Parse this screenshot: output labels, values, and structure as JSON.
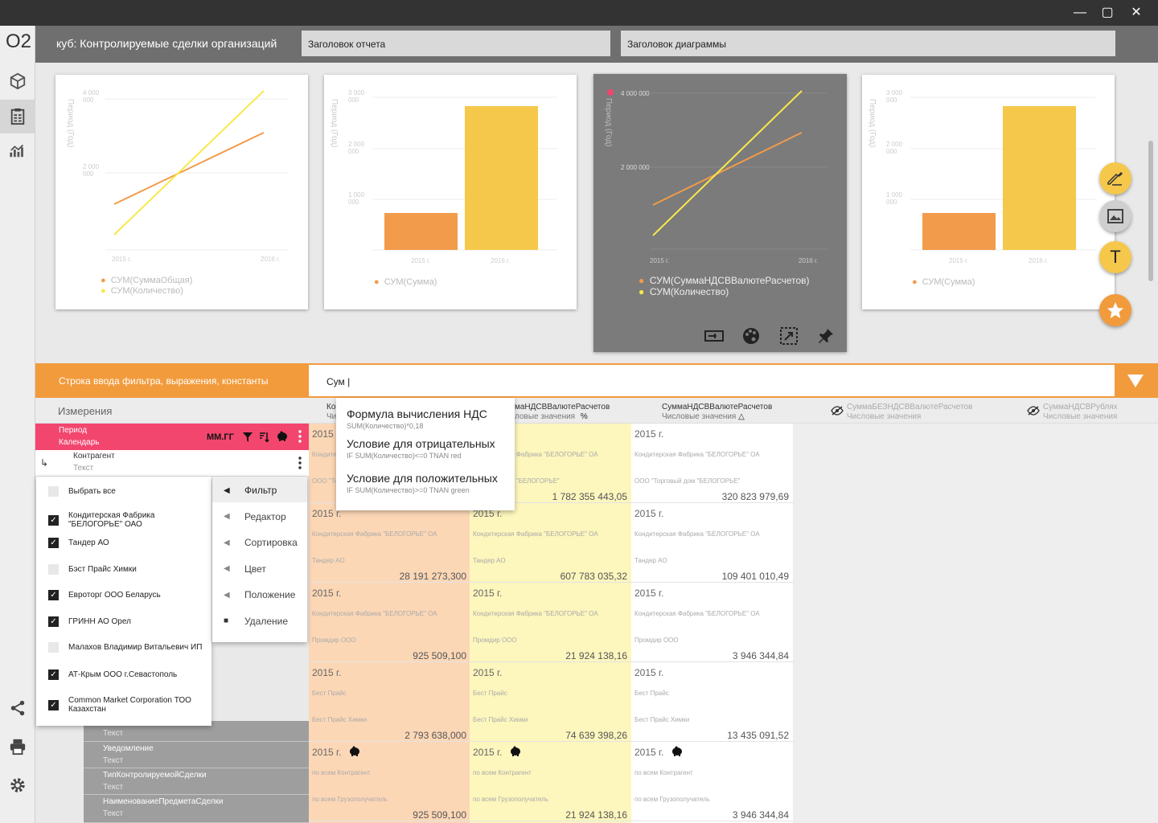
{
  "window": {
    "minimize": "—",
    "maximize": "▢",
    "close": "✕"
  },
  "sidebar": {
    "logo": "O2"
  },
  "topbar": {
    "cube_label": "куб: Контролируемые сделки организаций",
    "report_title_placeholder": "Заголовок отчета",
    "chart_title_placeholder": "Заголовок диаграммы"
  },
  "cards": [
    {
      "ylabel": "Период (Год)",
      "ticks_y": [
        "4 000 000",
        "2 000 000"
      ],
      "ticks_x": [
        "2015 г.",
        "2016 г."
      ],
      "legend": [
        "СУМ(СуммаОбщая)",
        "СУМ(Количество)"
      ]
    },
    {
      "ylabel": "Период (Год)",
      "ticks_y": [
        "3 000 000",
        "2 000 000",
        "1 000 000"
      ],
      "ticks_x": [
        "2015 г.",
        "2016 г."
      ],
      "legend": [
        "СУМ(Сумма)"
      ]
    },
    {
      "ylabel": "Период (Год)",
      "ticks_y": [
        "4 000 000",
        "2 000 000"
      ],
      "ticks_x": [
        "2015 г.",
        "2016 г."
      ],
      "legend": [
        "СУМ(СуммаНДСВВалютеРасчетов)",
        "СУМ(Количество)"
      ]
    },
    {
      "ylabel": "Период (Год)",
      "ticks_y": [
        "3 000 000",
        "2 000 000",
        "1 000 000"
      ],
      "ticks_x": [
        "2015 г.",
        "2016 г."
      ],
      "legend": [
        "СУМ(Сумма)"
      ]
    }
  ],
  "fab": {
    "text_label": "T"
  },
  "filter": {
    "label": "Строка ввода фильтра, выражения, константы",
    "value": "Сум |"
  },
  "measures": {
    "title": "Измерения"
  },
  "columns": [
    {
      "name": "Ко",
      "sub": "Чис"
    },
    {
      "name": "маНДСВВалютеРасчетов",
      "sub": "ловые значения",
      "mark": "%"
    },
    {
      "name": "СуммаНДСВВалютеРасчетов",
      "sub": "Числовые значения",
      "mark": "△"
    },
    {
      "name": "СуммаБЕЗНДСВВалютеРасчетов",
      "sub": "Числовые значения"
    },
    {
      "name": "СуммаНДСВРублях",
      "sub": "Числовые значения"
    }
  ],
  "suggestions": [
    {
      "title": "Формула вычисления НДС",
      "expr": "SUM(Количество)*0,18"
    },
    {
      "title": "Условие для отрицательных",
      "expr": "IF SUM(Количество)<=0  TNAN red"
    },
    {
      "title": "Условие для положительных",
      "expr": "IF SUM(Количество)>=0  TNAN green"
    }
  ],
  "period_row": {
    "name": "Период",
    "type": "Календарь",
    "format": "ММ.ГГ"
  },
  "contractor_row": {
    "name": "Контрагент",
    "type": "Текст"
  },
  "checklist": [
    {
      "label": "Выбрать все",
      "checked": false
    },
    {
      "label": "Кондитерская Фабрика \"БЕЛОГОРЬЕ\" ОАО",
      "checked": true
    },
    {
      "label": "Тандер АО",
      "checked": true
    },
    {
      "label": "Бэст Прайс Химки",
      "checked": false
    },
    {
      "label": "Евроторг ООО Беларусь",
      "checked": true
    },
    {
      "label": "ГРИНН АО Орел",
      "checked": true
    },
    {
      "label": "Малахов Владимир Витальевич ИП",
      "checked": false
    },
    {
      "label": "АТ-Крым ООО г.Севастополь",
      "checked": true
    },
    {
      "label": "Common Market Corporation ТОО Казахстан",
      "checked": true
    }
  ],
  "context_menu": [
    "Фильтр",
    "Редактор",
    "Сортировка",
    "Цвет",
    "Положение",
    "Удаление"
  ],
  "dim_rows": [
    {
      "name": "",
      "type": "Текст"
    },
    {
      "name": "Уведомление",
      "type": "Текст"
    },
    {
      "name": "ТипКонтролируемойСделки",
      "type": "Текст"
    },
    {
      "name": "НаименованиеПредметаСделки",
      "type": "Текст"
    }
  ],
  "rows": [
    {
      "c": [
        {
          "y": "2015 г.",
          "l1": "Кондитерская Фабрика \"БЕЛОГОРЬЕ\" ОА",
          "l2": "ООО \"Торговый дом \"БЕЛОГОРЬЕ\"",
          "v": ""
        },
        {
          "y": "",
          "l1": "Кондитерская Фабрика \"БЕЛОГОРЬЕ\" ОА",
          "l2": "Торговый дом \"БЕЛОГОРЬЕ\"",
          "v": "1 782 355 443,05"
        },
        {
          "y": "2015 г.",
          "l1": "Кондитерская Фабрика \"БЕЛОГОРЬЕ\" ОА",
          "l2": "ООО \"Торговый дом \"БЕЛОГОРЬЕ\"",
          "v": "320 823 979,69"
        }
      ]
    },
    {
      "c": [
        {
          "y": "2015 г.",
          "l1": "Кондитерская Фабрика \"БЕЛОГОРЬЕ\" ОА",
          "l2": "Тандер АО",
          "v": "28 191 273,300"
        },
        {
          "y": "2015 г.",
          "l1": "Кондитерская Фабрика \"БЕЛОГОРЬЕ\" ОА",
          "l2": "Тандер АО",
          "v": "607 783 035,32"
        },
        {
          "y": "2015 г.",
          "l1": "Кондитерская Фабрика \"БЕЛОГОРЬЕ\" ОА",
          "l2": "Тандер АО",
          "v": "109 401 010,49"
        }
      ]
    },
    {
      "c": [
        {
          "y": "2015 г.",
          "l1": "Кондитерская Фабрика \"БЕЛОГОРЬЕ\" ОА",
          "l2": "Промдир ООО",
          "v": "925 509,100"
        },
        {
          "y": "2015 г.",
          "l1": "Кондитерская Фабрика \"БЕЛОГОРЬЕ\" ОА",
          "l2": "Промдир ООО",
          "v": "21 924 138,16"
        },
        {
          "y": "2015 г.",
          "l1": "Кондитерская Фабрика \"БЕЛОГОРЬЕ\" ОА",
          "l2": "Промдир ООО",
          "v": "3 946 344,84"
        }
      ]
    },
    {
      "c": [
        {
          "y": "2015 г.",
          "l1": "Бест Прайс",
          "l2": "Бест Прайс Химки",
          "v": "2 793 638,000"
        },
        {
          "y": "2015 г.",
          "l1": "Бест Прайс",
          "l2": "Бест Прайс Химки",
          "v": "74 639 398,26"
        },
        {
          "y": "2015 г.",
          "l1": "Бест Прайс",
          "l2": "Бест Прайс Химки",
          "v": "13 435 091,52"
        }
      ]
    },
    {
      "c": [
        {
          "y": "2015 г.",
          "l1": "по всем Контрагент",
          "l2": "по всем Грузополучатель",
          "v": "925 509,100"
        },
        {
          "y": "2015 г.",
          "l1": "по всем Контрагент",
          "l2": "по всем Грузополучатель",
          "v": "21 924 138,16"
        },
        {
          "y": "2015 г.",
          "l1": "по всем Контрагент",
          "l2": "по всем Грузополучатель",
          "v": "3 946 344,84"
        }
      ]
    }
  ],
  "colors": {
    "accent": "#f29b3c",
    "pink": "#f2466f",
    "yellow": "#f5c84c",
    "orange": "#f29b4a"
  }
}
